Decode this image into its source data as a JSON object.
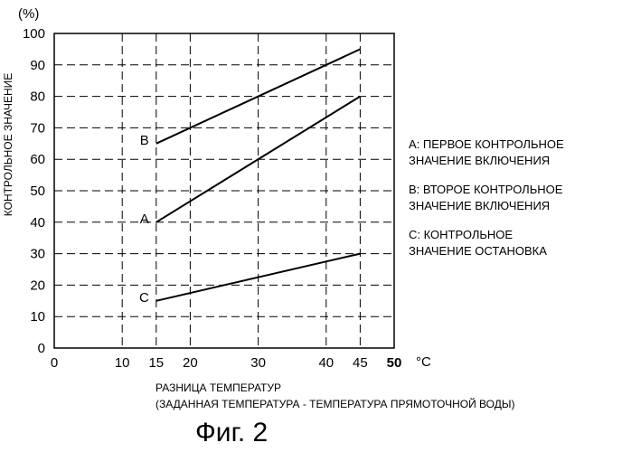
{
  "chart_data": {
    "type": "line",
    "y_unit": "(%)",
    "ylabel": "КОНТРОЛЬНОЕ ЗНАЧЕНИЕ",
    "xlabel": "РАЗНИЦА ТЕМПЕРАТУР",
    "xlabel_sub": "(ЗАДАННАЯ ТЕМПЕРАТУРА - ТЕМПЕРАТУРА ПРЯМОТОЧНОЙ ВОДЫ)",
    "x_unit": "°C",
    "xlim": [
      0,
      50
    ],
    "ylim": [
      0,
      100
    ],
    "x_ticks": [
      "0",
      "10",
      "15",
      "20",
      "30",
      "40",
      "45",
      "50"
    ],
    "y_ticks": [
      "0",
      "10",
      "20",
      "30",
      "40",
      "50",
      "60",
      "70",
      "80",
      "90",
      "100"
    ],
    "grid": true,
    "series": [
      {
        "name": "A",
        "x": [
          15,
          45
        ],
        "y": [
          40,
          80
        ]
      },
      {
        "name": "B",
        "x": [
          15,
          45
        ],
        "y": [
          65,
          95
        ]
      },
      {
        "name": "C",
        "x": [
          15,
          45
        ],
        "y": [
          15,
          30
        ]
      }
    ],
    "legend": [
      {
        "line1": "A: ПЕРВОЕ КОНТРОЛЬНОЕ",
        "line2": "ЗНАЧЕНИЕ ВКЛЮЧЕНИЯ"
      },
      {
        "line1": "B: ВТОРОЕ КОНТРОЛЬНОЕ",
        "line2": "ЗНАЧЕНИЕ ВКЛЮЧЕНИЯ"
      },
      {
        "line1": "C: КОНТРОЛЬНОЕ",
        "line2": "ЗНАЧЕНИЕ ОСТАНОВКА"
      }
    ],
    "legend_position": "right"
  },
  "caption": "Фиг. 2"
}
